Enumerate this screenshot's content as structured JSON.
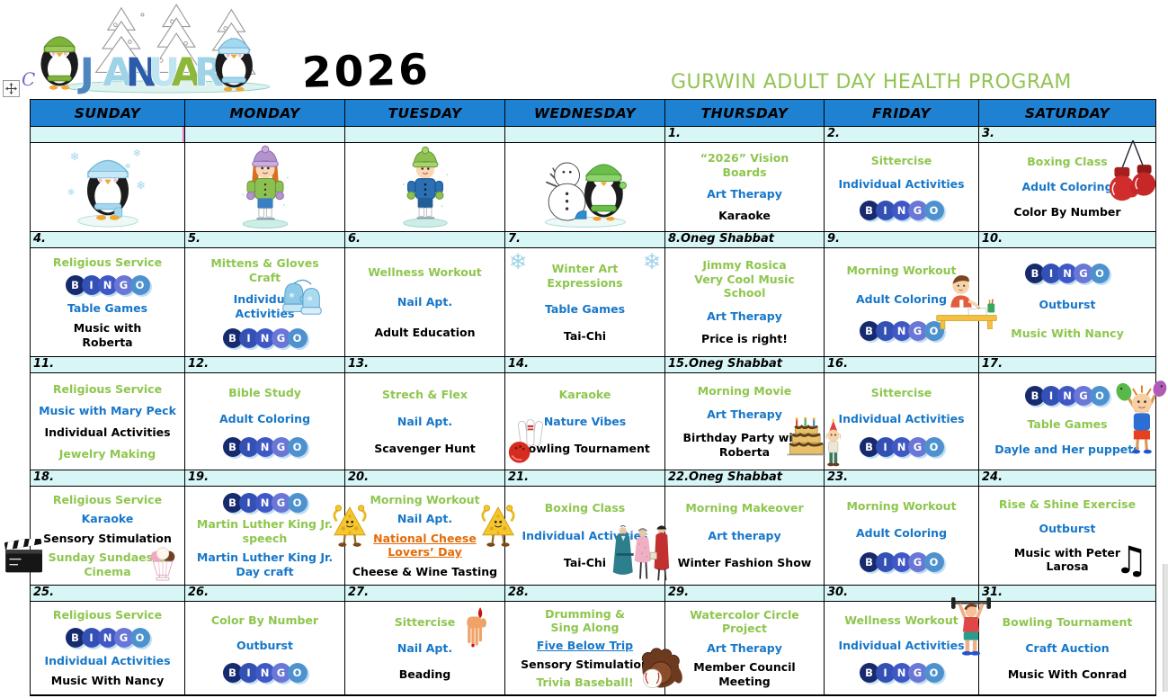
{
  "header": {
    "month_label": "JANUARY",
    "year": "2026",
    "program_title": "GURWIN ADULT DAY HEALTH PROGRAM",
    "stray_letter": "C"
  },
  "weekday_headers": [
    "SUNDAY",
    "MONDAY",
    "TUESDAY",
    "WEDNESDAY",
    "THURSDAY",
    "FRIDAY",
    "SATURDAY"
  ],
  "bingo_letters": [
    "B",
    "I",
    "N",
    "G",
    "O"
  ],
  "colors": {
    "header_bar": "#1e81d2",
    "date_strip": "#d8f6f6",
    "text_green": "#8ec64e",
    "text_blue": "#1777c9",
    "text_orange": "#e36c0a",
    "text_black": "#000000",
    "program_title_green": "#92c353",
    "bingo_chips": [
      "#182a6e",
      "#3350b4",
      "#4058c6",
      "#6a77d6",
      "#4d92cf"
    ],
    "january_letters": [
      "#4f86c0",
      "#9fd3e8",
      "#2a5ca8",
      "#bfe4f2",
      "#8cb83c",
      "#9fd3e8",
      "#4f86c0"
    ]
  },
  "weeks": [
    {
      "cells": [
        {
          "date": "",
          "items": [],
          "icons": [
            {
              "icon": "penguin-skating-icon",
              "pos": "center"
            }
          ]
        },
        {
          "date": "",
          "items": [],
          "icons": [
            {
              "icon": "girl-skater-icon",
              "pos": "center"
            }
          ]
        },
        {
          "date": "",
          "items": [],
          "icons": [
            {
              "icon": "boy-skater-icon",
              "pos": "center"
            }
          ]
        },
        {
          "date": "",
          "items": [],
          "icons": [
            {
              "icon": "snowman-penguin-icon",
              "pos": "center"
            }
          ]
        },
        {
          "date": "1.",
          "items": [
            {
              "text": "“2026” Vision Boards",
              "color": "green",
              "maxw": 108
            },
            {
              "text": "Art Therapy",
              "color": "blue"
            },
            {
              "text": "Karaoke",
              "color": "black"
            }
          ]
        },
        {
          "date": "2.",
          "items": [
            {
              "text": "Sittercise",
              "color": "green"
            },
            {
              "text": "Individual Activities",
              "color": "blue"
            },
            {
              "bingo": true
            }
          ]
        },
        {
          "date": "3.",
          "items": [
            {
              "text": "Boxing Class",
              "color": "green"
            },
            {
              "text": "Adult Coloring",
              "color": "blue"
            },
            {
              "text": "Color By Number",
              "color": "black"
            }
          ],
          "icons": [
            {
              "icon": "boxing-gloves-icon",
              "pos": "gloves"
            }
          ]
        }
      ]
    },
    {
      "cells": [
        {
          "date": "4.",
          "items": [
            {
              "text": "Religious Service",
              "color": "green"
            },
            {
              "bingo": true
            },
            {
              "text": "Table Games",
              "color": "blue"
            },
            {
              "text": "Music with Roberta",
              "color": "black",
              "maxw": 105
            }
          ]
        },
        {
          "date": "5.",
          "items": [
            {
              "text": "Mittens & Gloves Craft",
              "color": "green",
              "maxw": 130
            },
            {
              "text": "Individual Activities",
              "color": "blue",
              "maxw": 105
            },
            {
              "bingo": true
            }
          ],
          "icons": [
            {
              "icon": "mittens-icon",
              "pos": "mitts"
            }
          ]
        },
        {
          "date": "6.",
          "items": [
            {
              "text": "Wellness Workout",
              "color": "green"
            },
            {
              "text": "Nail Apt.",
              "color": "blue"
            },
            {
              "text": "Adult Education",
              "color": "black"
            }
          ]
        },
        {
          "date": "7.",
          "items": [
            {
              "text": "Winter Art Expressions",
              "color": "green",
              "maxw": 100
            },
            {
              "text": "Table Games",
              "color": "blue"
            },
            {
              "text": "Tai-Chi",
              "color": "black"
            }
          ],
          "icons": [
            {
              "icon": "snowflake-icon",
              "pos": "snowL"
            },
            {
              "icon": "snowflake-icon",
              "pos": "snowR"
            }
          ]
        },
        {
          "date": "8.Oneg Shabbat",
          "items": [
            {
              "text": "Jimmy Rosica Very Cool Music School",
              "color": "green",
              "maxw": 122
            },
            {
              "text": "Art Therapy",
              "color": "blue"
            },
            {
              "text": "Price is right!",
              "color": "black"
            }
          ]
        },
        {
          "date": "9.",
          "items": [
            {
              "text": "Morning Workout",
              "color": "green"
            },
            {
              "text": "Adult Coloring",
              "color": "blue"
            },
            {
              "bingo": true
            }
          ],
          "icons": [
            {
              "icon": "boy-coloring-icon",
              "pos": "boy9"
            }
          ]
        },
        {
          "date": "10.",
          "items": [
            {
              "bingo": true
            },
            {
              "text": "Outburst",
              "color": "blue"
            },
            {
              "text": "Music With Nancy",
              "color": "green"
            }
          ]
        }
      ]
    },
    {
      "cells": [
        {
          "date": "11.",
          "items": [
            {
              "text": "Religious Service",
              "color": "green"
            },
            {
              "text": "Music with Mary Peck",
              "color": "blue"
            },
            {
              "text": "Individual Activities",
              "color": "black"
            },
            {
              "text": "Jewelry Making",
              "color": "green"
            }
          ]
        },
        {
          "date": "12.",
          "items": [
            {
              "text": "Bible Study",
              "color": "green"
            },
            {
              "text": "Adult Coloring",
              "color": "blue"
            },
            {
              "bingo": true
            }
          ]
        },
        {
          "date": "13.",
          "items": [
            {
              "text": "Strech & Flex",
              "color": "green"
            },
            {
              "text": "Nail Apt.",
              "color": "blue"
            },
            {
              "text": "Scavenger Hunt",
              "color": "black"
            }
          ]
        },
        {
          "date": "14.",
          "items": [
            {
              "text": "Karaoke",
              "color": "green"
            },
            {
              "text": "Nature Vibes",
              "color": "blue"
            },
            {
              "text": "Bowling Tournament",
              "color": "black"
            }
          ],
          "icons": [
            {
              "icon": "bowling-icon",
              "pos": "bowl"
            }
          ]
        },
        {
          "date": "15.Oneg Shabbat",
          "items": [
            {
              "text": "Morning Movie",
              "color": "green"
            },
            {
              "text": "Art Therapy",
              "color": "blue"
            },
            {
              "text": "Birthday Party with Roberta",
              "color": "black",
              "maxw": 145
            }
          ],
          "icons": [
            {
              "icon": "birthday-cake-icon",
              "pos": "cake"
            }
          ]
        },
        {
          "date": "16.",
          "items": [
            {
              "text": "Sittercise",
              "color": "green"
            },
            {
              "text": "Individual Activities",
              "color": "blue"
            },
            {
              "bingo": true
            }
          ]
        },
        {
          "date": "17.",
          "items": [
            {
              "bingo": true
            },
            {
              "text": "Table Games",
              "color": "green"
            },
            {
              "text": "Dayle and Her puppets",
              "color": "blue"
            }
          ],
          "icons": [
            {
              "icon": "kid-puppets-icon",
              "pos": "pupp"
            }
          ]
        }
      ]
    },
    {
      "cells": [
        {
          "date": "18.",
          "items": [
            {
              "text": "Religious Service",
              "color": "green"
            },
            {
              "text": "Karaoke",
              "color": "blue"
            },
            {
              "text": "Sensory Stimulation",
              "color": "black"
            },
            {
              "text": "Sunday Sundaes & Cinema",
              "color": "green",
              "maxw": 140
            }
          ],
          "icons": [
            {
              "icon": "clapperboard-icon",
              "pos": "clap"
            },
            {
              "icon": "ice-cream-sundae-icon",
              "pos": "sund"
            }
          ]
        },
        {
          "date": "19.",
          "items": [
            {
              "bingo": true
            },
            {
              "text": "Martin Luther King Jr. speech",
              "color": "green",
              "maxw": 155
            },
            {
              "text": "Martin Luther King Jr. Day craft",
              "color": "blue",
              "maxw": 155
            }
          ]
        },
        {
          "date": "20.",
          "items": [
            {
              "text": "Morning Workout",
              "color": "green"
            },
            {
              "text": "Nail Apt.",
              "color": "blue"
            },
            {
              "text": "National Cheese Lovers’ Day",
              "color": "orange",
              "underline": true,
              "maxw": 135
            },
            {
              "text": "Cheese & Wine Tasting",
              "color": "black"
            }
          ],
          "icons": [
            {
              "icon": "cheese-character-icon",
              "pos": "cheL"
            },
            {
              "icon": "cheese-character-icon",
              "pos": "cheR"
            }
          ]
        },
        {
          "date": "21.",
          "items": [
            {
              "text": "Boxing Class",
              "color": "green"
            },
            {
              "text": "Individual Activities",
              "color": "blue"
            },
            {
              "text": "Tai-Chi",
              "color": "black"
            }
          ],
          "icons": [
            {
              "icon": "fashion-outfits-icon",
              "pos": "fash"
            }
          ]
        },
        {
          "date": "22.Oneg Shabbat",
          "items": [
            {
              "text": "Morning Makeover",
              "color": "green"
            },
            {
              "text": "Art therapy",
              "color": "blue"
            },
            {
              "text": "Winter Fashion Show",
              "color": "black"
            }
          ]
        },
        {
          "date": "23.",
          "items": [
            {
              "text": "Morning Workout",
              "color": "green"
            },
            {
              "text": "Adult Coloring",
              "color": "blue"
            },
            {
              "bingo": true
            }
          ]
        },
        {
          "date": "24.",
          "items": [
            {
              "text": "Rise & Shine Exercise",
              "color": "green"
            },
            {
              "text": "Outburst",
              "color": "blue"
            },
            {
              "text": "Music with Peter Larosa",
              "color": "black",
              "maxw": 135
            }
          ],
          "icons": [
            {
              "icon": "music-note-icon",
              "pos": "note"
            }
          ]
        }
      ]
    },
    {
      "cells": [
        {
          "date": "25.",
          "items": [
            {
              "text": "Religious Service",
              "color": "green"
            },
            {
              "bingo": true
            },
            {
              "text": "Individual Activities",
              "color": "blue"
            },
            {
              "text": "Music With Nancy",
              "color": "black"
            }
          ]
        },
        {
          "date": "26.",
          "items": [
            {
              "text": "Color By Number",
              "color": "green"
            },
            {
              "text": "Outburst",
              "color": "blue"
            },
            {
              "bingo": true
            }
          ]
        },
        {
          "date": "27.",
          "items": [
            {
              "text": "Sittercise",
              "color": "green"
            },
            {
              "text": "Nail Apt.",
              "color": "blue"
            },
            {
              "text": "Beading",
              "color": "black"
            }
          ],
          "icons": [
            {
              "icon": "nail-polish-hand-icon",
              "pos": "nail"
            }
          ]
        },
        {
          "date": "28.",
          "items": [
            {
              "text": "Drumming & Sing Along",
              "color": "green",
              "maxw": 120
            },
            {
              "text": "Five Below Trip",
              "color": "blue",
              "underline": true
            },
            {
              "text": "Sensory Stimulation",
              "color": "black"
            },
            {
              "text": "Trivia Baseball!",
              "color": "green"
            }
          ],
          "icons": [
            {
              "icon": "baseball-glove-icon",
              "pos": "glove28"
            }
          ]
        },
        {
          "date": "29.",
          "items": [
            {
              "text": "Watercolor Circle Project",
              "color": "green",
              "maxw": 135
            },
            {
              "text": "Art Therapy",
              "color": "blue"
            },
            {
              "text": "Member Council Meeting",
              "color": "black",
              "maxw": 150
            }
          ]
        },
        {
          "date": "30.",
          "items": [
            {
              "text": "Wellness Workout",
              "color": "green"
            },
            {
              "text": "Individual Activities",
              "color": "blue"
            },
            {
              "bingo": true
            }
          ],
          "icons": [
            {
              "icon": "weightlifter-icon",
              "pos": "lift"
            }
          ]
        },
        {
          "date": "31.",
          "items": [
            {
              "text": "Bowling Tournament",
              "color": "green"
            },
            {
              "text": "Craft Auction",
              "color": "blue"
            },
            {
              "text": "Music With Conrad",
              "color": "black"
            }
          ]
        }
      ]
    }
  ]
}
